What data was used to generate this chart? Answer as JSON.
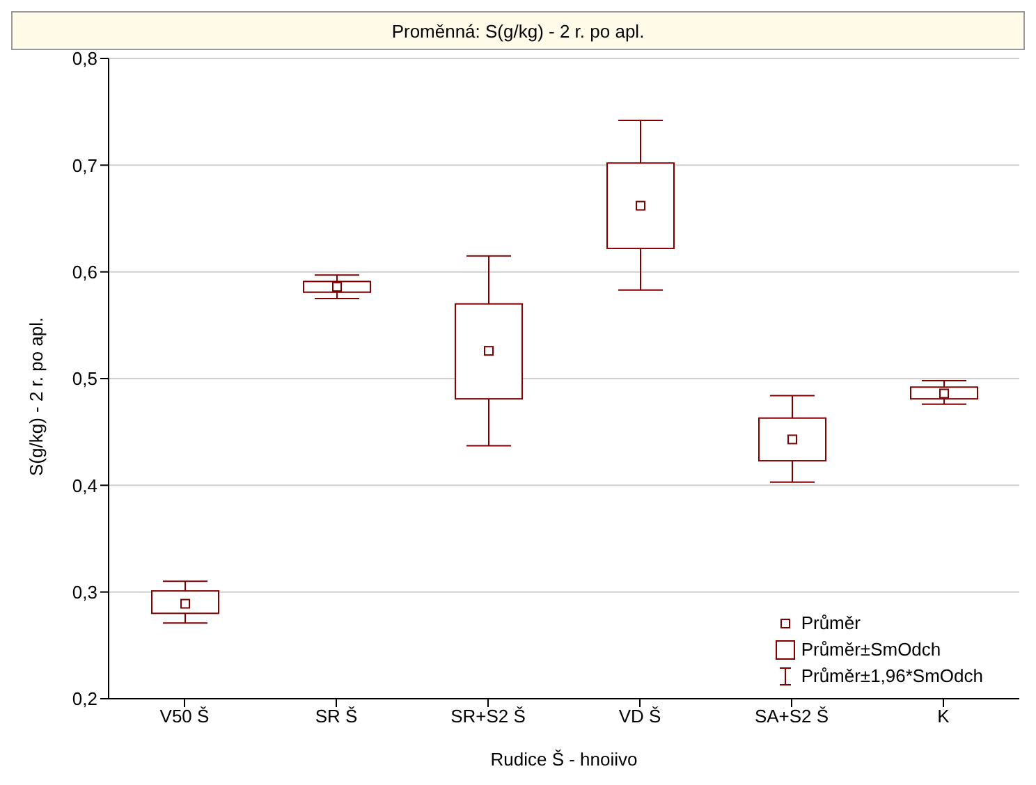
{
  "chart_data": {
    "type": "box",
    "title": "Proměnná: S(g/kg) - 2 r. po apl.",
    "xlabel": "Rudice Š - hnoiivo",
    "ylabel": "S(g/kg) - 2 r. po apl.",
    "categories": [
      "V50 Š",
      "SR Š",
      "SR+S2 Š",
      "VD Š",
      "SA+S2 Š",
      "K"
    ],
    "color": "#800000",
    "boxes": [
      {
        "low": 0.271,
        "q1": 0.28,
        "mean": 0.289,
        "q3": 0.301,
        "high": 0.31
      },
      {
        "low": 0.575,
        "q1": 0.581,
        "mean": 0.586,
        "q3": 0.591,
        "high": 0.597
      },
      {
        "low": 0.437,
        "q1": 0.481,
        "mean": 0.526,
        "q3": 0.57,
        "high": 0.615
      },
      {
        "low": 0.583,
        "q1": 0.622,
        "mean": 0.662,
        "q3": 0.702,
        "high": 0.742
      },
      {
        "low": 0.403,
        "q1": 0.423,
        "mean": 0.443,
        "q3": 0.463,
        "high": 0.484
      },
      {
        "low": 0.476,
        "q1": 0.481,
        "mean": 0.486,
        "q3": 0.492,
        "high": 0.498
      }
    ],
    "ylim": [
      0.2,
      0.8
    ],
    "yticks": [
      {
        "value": 0.2,
        "label": "0,2"
      },
      {
        "value": 0.3,
        "label": "0,3"
      },
      {
        "value": 0.4,
        "label": "0,4"
      },
      {
        "value": 0.5,
        "label": "0,5"
      },
      {
        "value": 0.6,
        "label": "0,6"
      },
      {
        "value": 0.7,
        "label": "0,7"
      },
      {
        "value": 0.8,
        "label": "0,8"
      }
    ],
    "grid": "y",
    "annotations": [
      "Průměr",
      "Průměr±SmOdch",
      "Průměr±1,96*SmOdch"
    ]
  }
}
